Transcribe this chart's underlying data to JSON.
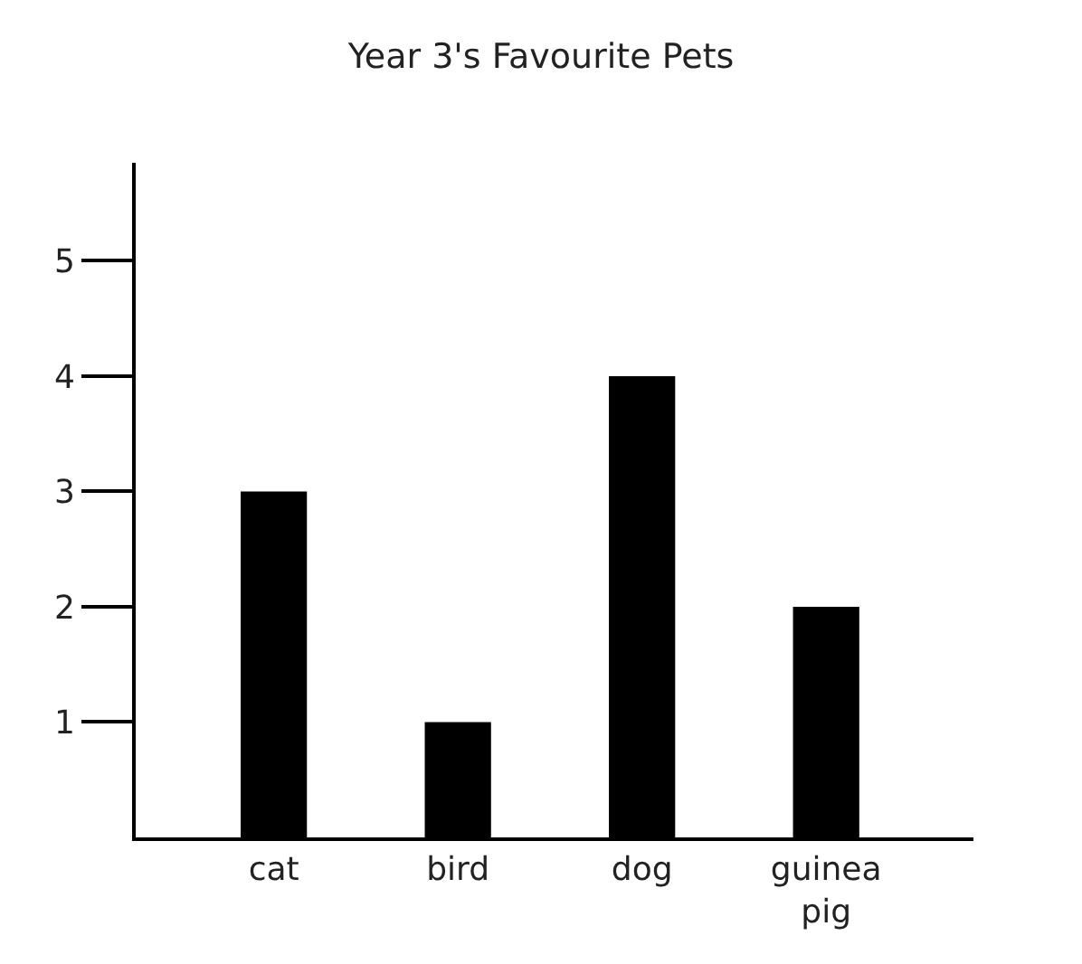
{
  "chart_data": {
    "type": "bar",
    "title": "Year 3's Favourite Pets",
    "categories": [
      "cat",
      "bird",
      "dog",
      "guinea pig"
    ],
    "values": [
      3,
      1,
      4,
      2
    ],
    "color": "#000000",
    "ylim": [
      0,
      5.85
    ],
    "yticks": [
      1,
      2,
      3,
      4,
      5
    ]
  }
}
